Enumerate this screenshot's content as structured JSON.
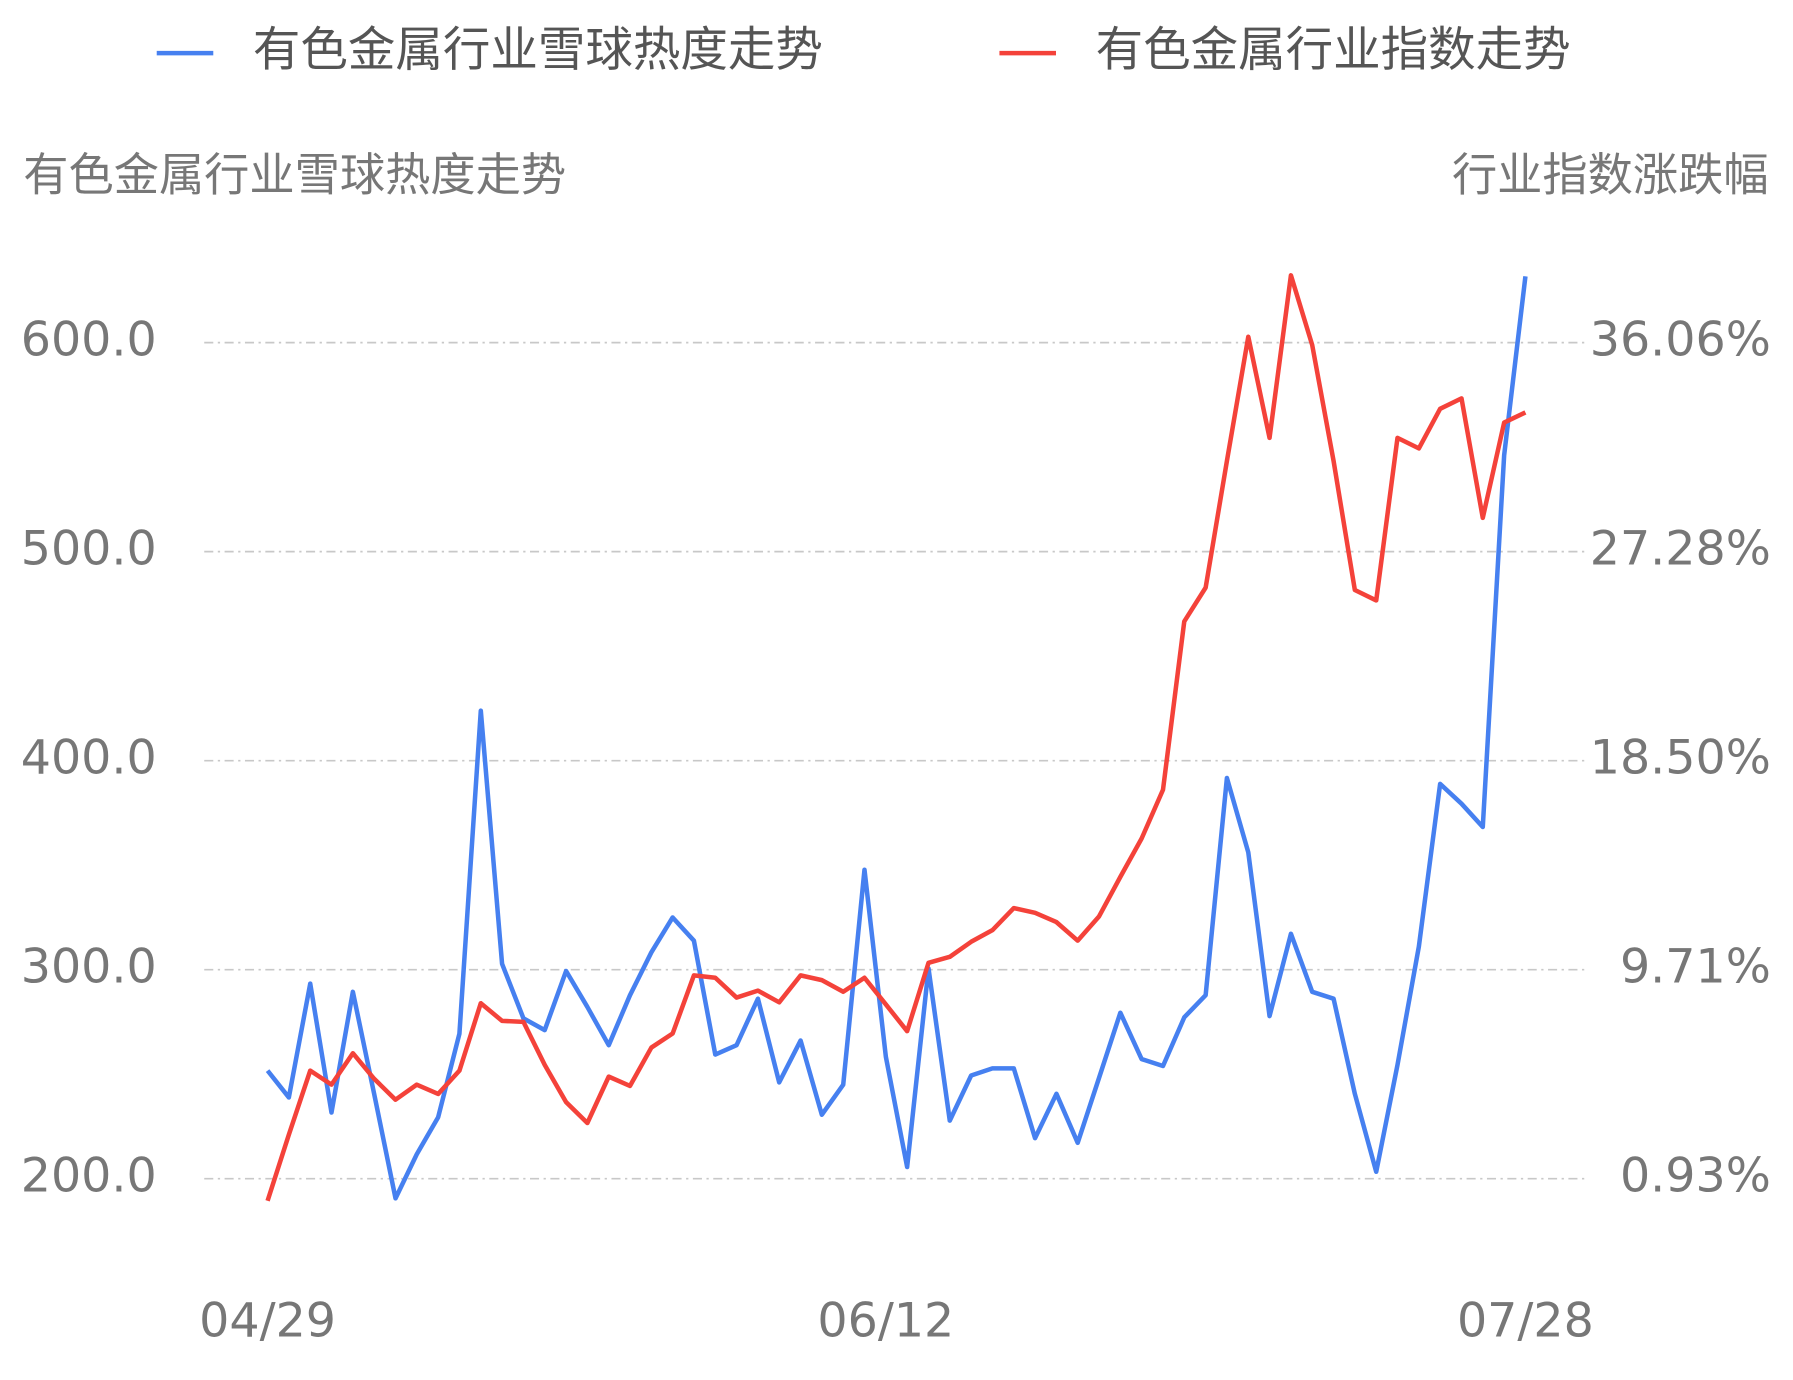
{
  "chart_data": {
    "type": "line",
    "y_label": "有色金属行业雪球热度走势",
    "y2_label": "行业指数涨跌幅",
    "categories": [
      "04/29",
      null,
      null,
      null,
      null,
      null,
      null,
      null,
      null,
      null,
      null,
      null,
      null,
      null,
      null,
      null,
      null,
      null,
      null,
      null,
      null,
      null,
      null,
      null,
      null,
      null,
      null,
      null,
      null,
      "06/12",
      null,
      null,
      null,
      null,
      null,
      null,
      null,
      null,
      null,
      null,
      null,
      null,
      null,
      null,
      null,
      null,
      null,
      null,
      null,
      null,
      null,
      null,
      null,
      null,
      null,
      null,
      null,
      null,
      null,
      "07/28"
    ],
    "series": [
      {
        "name": "有色金属行业雪球热度走势",
        "color": "#4680f0",
        "axis": "y",
        "values": [
          251.7,
          238.9,
          293.3,
          231.7,
          289.4,
          240.6,
          190.6,
          211.7,
          229.4,
          269.4,
          423.9,
          302.8,
          276.7,
          271.1,
          299.4,
          282.2,
          263.9,
          287.8,
          308.3,
          325,
          313.9,
          259.4,
          263.9,
          286.1,
          246.1,
          266.1,
          230.6,
          245,
          347.8,
          258.3,
          205.6,
          300.6,
          227.8,
          249.4,
          252.8,
          252.8,
          219.4,
          240.6,
          217.2,
          248.3,
          279.4,
          257.2,
          253.9,
          277.2,
          287.8,
          391.7,
          356.1,
          277.8,
          317.2,
          289.4,
          286.1,
          240.6,
          203.3,
          254.4,
          311.1,
          388.9,
          379.4,
          368.3,
          546.1,
          631.7
        ]
      },
      {
        "name": "有色金属行业指数走势",
        "color": "#f4423a",
        "axis": "y2",
        "values": [
          0.0,
          2.78,
          5.47,
          4.88,
          6.2,
          5.13,
          4.25,
          4.88,
          4.49,
          5.47,
          8.3,
          7.56,
          7.52,
          5.71,
          4.15,
          3.27,
          5.22,
          4.83,
          6.44,
          7.03,
          9.47,
          9.37,
          8.54,
          8.83,
          8.34,
          9.47,
          9.27,
          8.78,
          9.37,
          8.25,
          7.13,
          10.0,
          10.25,
          10.88,
          11.37,
          12.3,
          12.1,
          11.71,
          10.93,
          11.95,
          13.61,
          15.22,
          17.27,
          24.34,
          25.76,
          31.08,
          36.3,
          32.05,
          38.88,
          35.95,
          31.08,
          25.66,
          25.22,
          32.05,
          31.61,
          33.27,
          33.71,
          28.69,
          32.69,
          33.12
        ]
      }
    ],
    "ylim": [
      180,
      640
    ],
    "yticks": [
      {
        "value": 200,
        "label": "200.0"
      },
      {
        "value": 300,
        "label": "300.0"
      },
      {
        "value": 400,
        "label": "400.0"
      },
      {
        "value": 500,
        "label": "500.0"
      },
      {
        "value": 600,
        "label": "600.0"
      }
    ],
    "y2lim": [
      -0.826,
      39.562
    ],
    "y2ticks": [
      {
        "value": 0.93,
        "label": "0.93%"
      },
      {
        "value": 9.71,
        "label": "9.71%"
      },
      {
        "value": 18.5,
        "label": "18.50%"
      },
      {
        "value": 27.28,
        "label": "27.28%"
      },
      {
        "value": 36.06,
        "label": "36.06%"
      }
    ],
    "grid": true
  }
}
